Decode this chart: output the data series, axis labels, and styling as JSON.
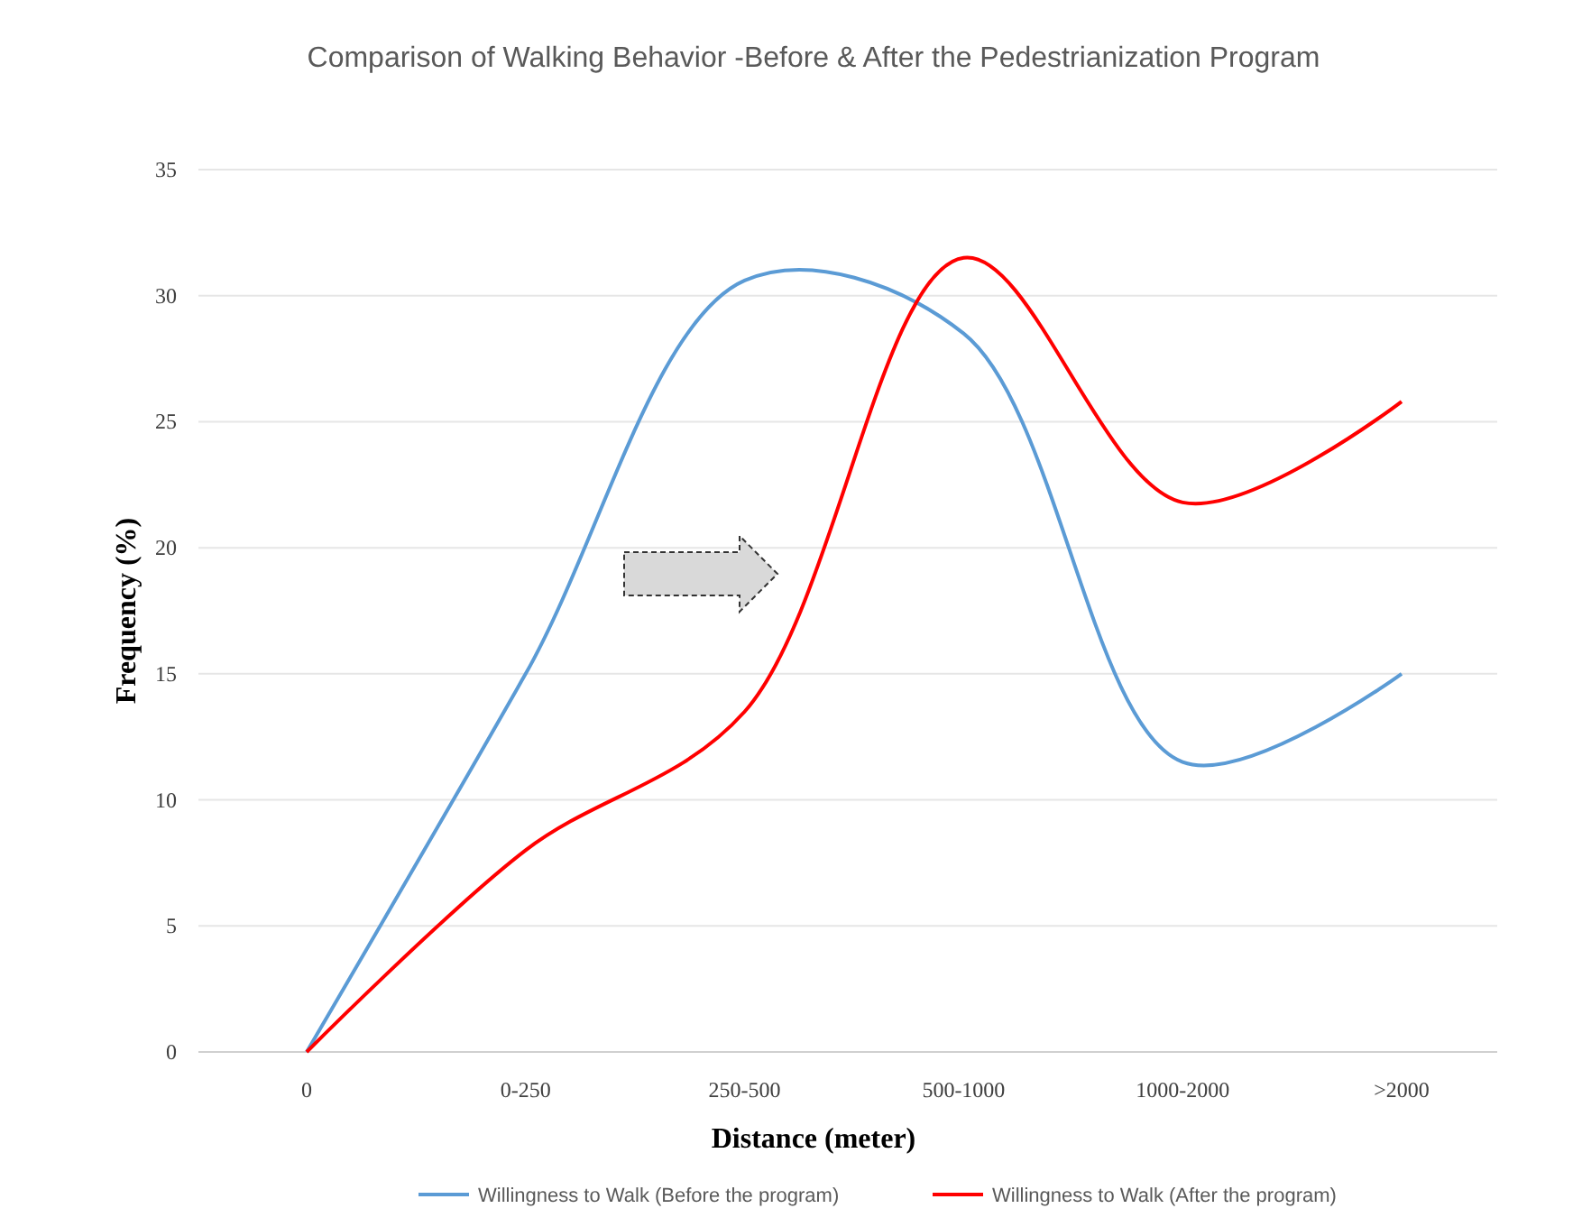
{
  "chart_data": {
    "type": "line",
    "title": "Comparison of Walking Behavior -Before & After the Pedestrianization Program",
    "xlabel": "Distance (meter)",
    "ylabel": "Frequency (%)",
    "categories": [
      "0",
      "0-250",
      "250-500",
      "500-1000",
      "1000-2000",
      ">2000"
    ],
    "series": [
      {
        "name": "Willingness to Walk (Before the program)",
        "color": "#5b9bd5",
        "values": [
          0,
          15,
          30.6,
          28.5,
          11.5,
          15
        ]
      },
      {
        "name": "Willingness to Walk (After the program)",
        "color": "#ff0000",
        "values": [
          0,
          8,
          13.5,
          31.5,
          21.8,
          25.8
        ]
      }
    ],
    "ylim": [
      0,
      35
    ],
    "yticks": [
      0,
      5,
      10,
      15,
      20,
      25,
      30,
      35
    ],
    "grid": "y",
    "legend": "bottom",
    "marker": "none",
    "line_style": "solid"
  }
}
